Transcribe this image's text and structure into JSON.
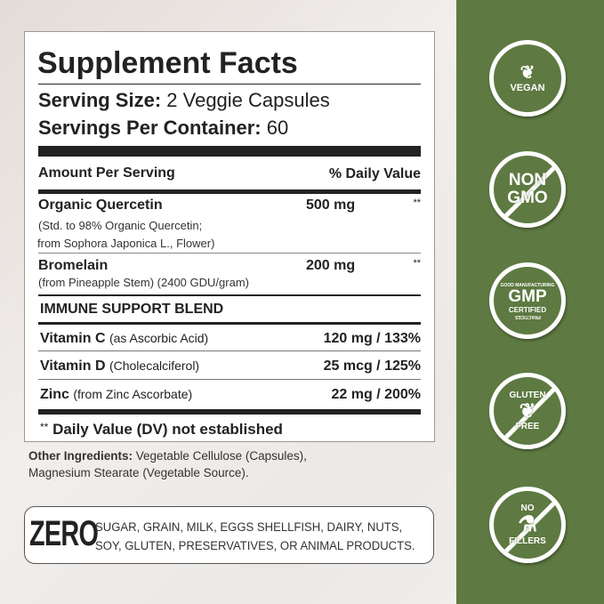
{
  "label": {
    "title": "Supplement Facts",
    "serving_size_label": "Serving Size:",
    "serving_size_value": "2 Veggie Capsules",
    "servings_label": "Servings Per Container:",
    "servings_value": "60",
    "amount_header": "Amount Per Serving",
    "dv_header": "% Daily Value",
    "quercetin": {
      "name": "Organic Quercetin",
      "amount": "500 mg",
      "dv": "**",
      "sub1": "(Std. to 98% Organic Quercetin;",
      "sub2": "from Sophora Japonica L., Flower)"
    },
    "bromelain": {
      "name": "Bromelain",
      "amount": "200 mg",
      "dv": "**",
      "sub1": "(from Pineapple Stem) (2400 GDU/gram)"
    },
    "blend_title": "IMMUNE SUPPORT BLEND",
    "blend": [
      {
        "name": "Vitamin C",
        "source": "(as Ascorbic Acid)",
        "amount": "120 mg / 133%"
      },
      {
        "name": "Vitamin D",
        "source": "(Cholecalciferol)",
        "amount": "25 mcg / 125%"
      },
      {
        "name": "Zinc",
        "source": "(from Zinc Ascorbate)",
        "amount": "22 mg / 200%"
      }
    ],
    "footnote_mark": "**",
    "footnote": "Daily Value (DV) not established"
  },
  "other": {
    "label": "Other Ingredients:",
    "line1": "Vegetable Cellulose (Capsules),",
    "line2": "Magnesium Stearate (Vegetable Source)."
  },
  "zero": {
    "word": "ZERO",
    "line1": "SUGAR, GRAIN, MILK, EGGS SHELLFISH, DAIRY, NUTS,",
    "line2": "SOY, GLUTEN, PRESERVATIVES, OR ANIMAL PRODUCTS."
  },
  "badges": [
    {
      "icon": "wheat-icon",
      "lines": [
        "VEGAN"
      ],
      "slash": false
    },
    {
      "icon": "non-gmo-icon",
      "lines": [
        "NON",
        "GMO"
      ],
      "slash": true
    },
    {
      "icon": "gmp-icon",
      "lines": [
        "GOOD MANUFACTURING",
        "GMP",
        "CERTIFIED",
        "PRACTICES"
      ],
      "slash": false
    },
    {
      "icon": "gluten-free-icon",
      "lines": [
        "GLUTEN",
        "FREE"
      ],
      "slash": true
    },
    {
      "icon": "flask-icon",
      "lines": [
        "NO",
        "FILLERS"
      ],
      "slash": true
    }
  ],
  "colors": {
    "panel": "#5e7a42",
    "text": "#222222"
  }
}
